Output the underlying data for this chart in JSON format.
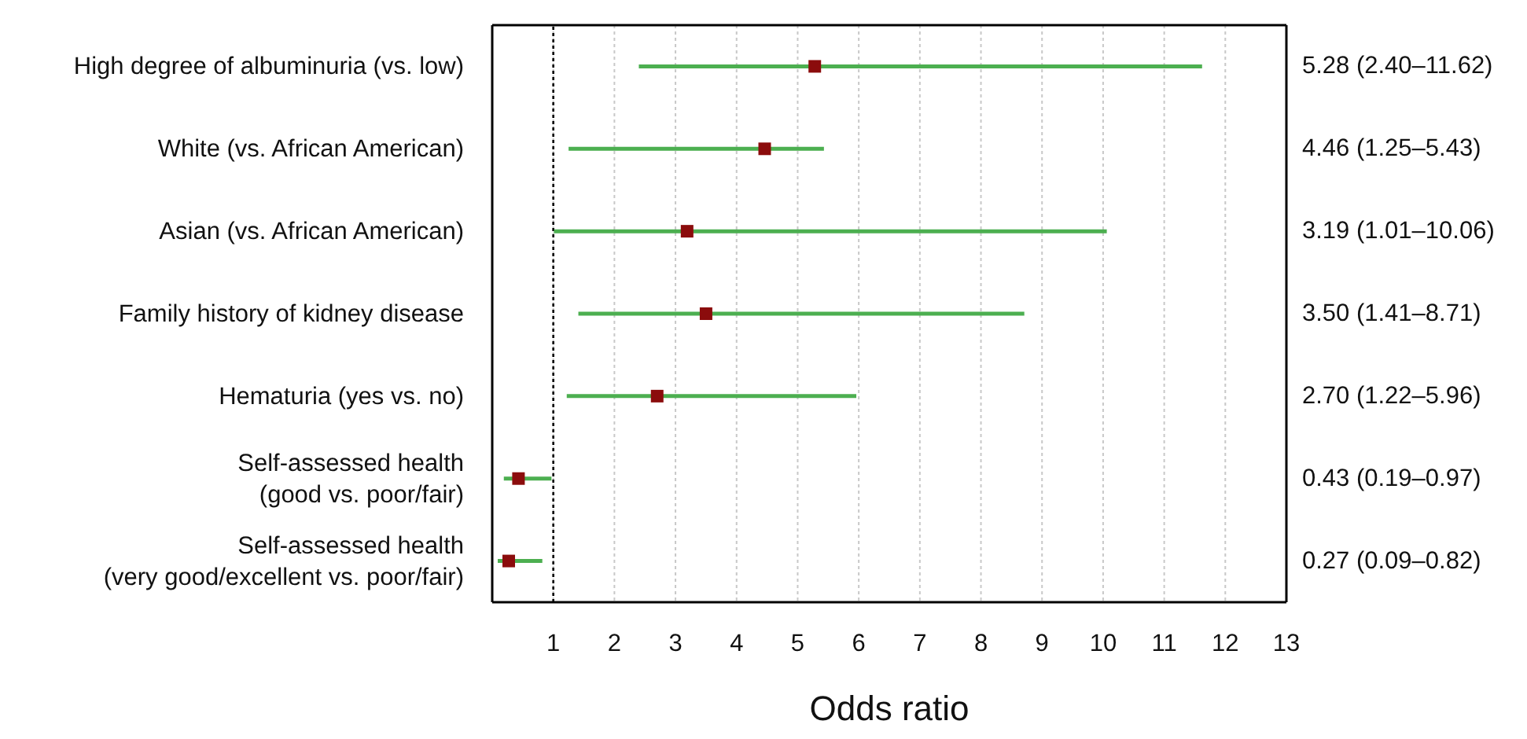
{
  "chart_data": {
    "type": "scatter",
    "orientation": "horizontal",
    "xlabel": "Odds ratio",
    "categories": [
      "High degree of albuminuria (vs. low)",
      "White (vs. African American)",
      "Asian (vs. African American)",
      "Family history of kidney disease",
      "Hematuria (yes vs. no)",
      "Self-assessed health\n(good vs. poor/fair)",
      "Self-assessed health\n(very good/excellent vs. poor/fair)"
    ],
    "values": [
      5.28,
      4.46,
      3.19,
      3.5,
      2.7,
      0.43,
      0.27
    ],
    "errors": [
      [
        2.4,
        11.62
      ],
      [
        1.25,
        5.43
      ],
      [
        1.01,
        10.06
      ],
      [
        1.41,
        8.71
      ],
      [
        1.22,
        5.96
      ],
      [
        0.19,
        0.97
      ],
      [
        0.09,
        0.82
      ]
    ],
    "annotations": [
      "5.28 (2.40–11.62)",
      "4.46 (1.25–5.43)",
      "3.19 (1.01–10.06)",
      "3.50 (1.41–8.71)",
      "2.70 (1.22–5.96)",
      "0.43 (0.19–0.97)",
      "0.27 (0.09–0.82)"
    ],
    "color": "#8b0c0c",
    "marker": "square",
    "xlim": [
      0,
      13
    ],
    "xticks": [
      1,
      2,
      3,
      4,
      5,
      6,
      7,
      8,
      9,
      10,
      11,
      12,
      13
    ],
    "grid": "x",
    "ref_lines": [
      {
        "axis": "x",
        "value": 1,
        "color": "#000000",
        "line_style": "dotted"
      }
    ]
  }
}
